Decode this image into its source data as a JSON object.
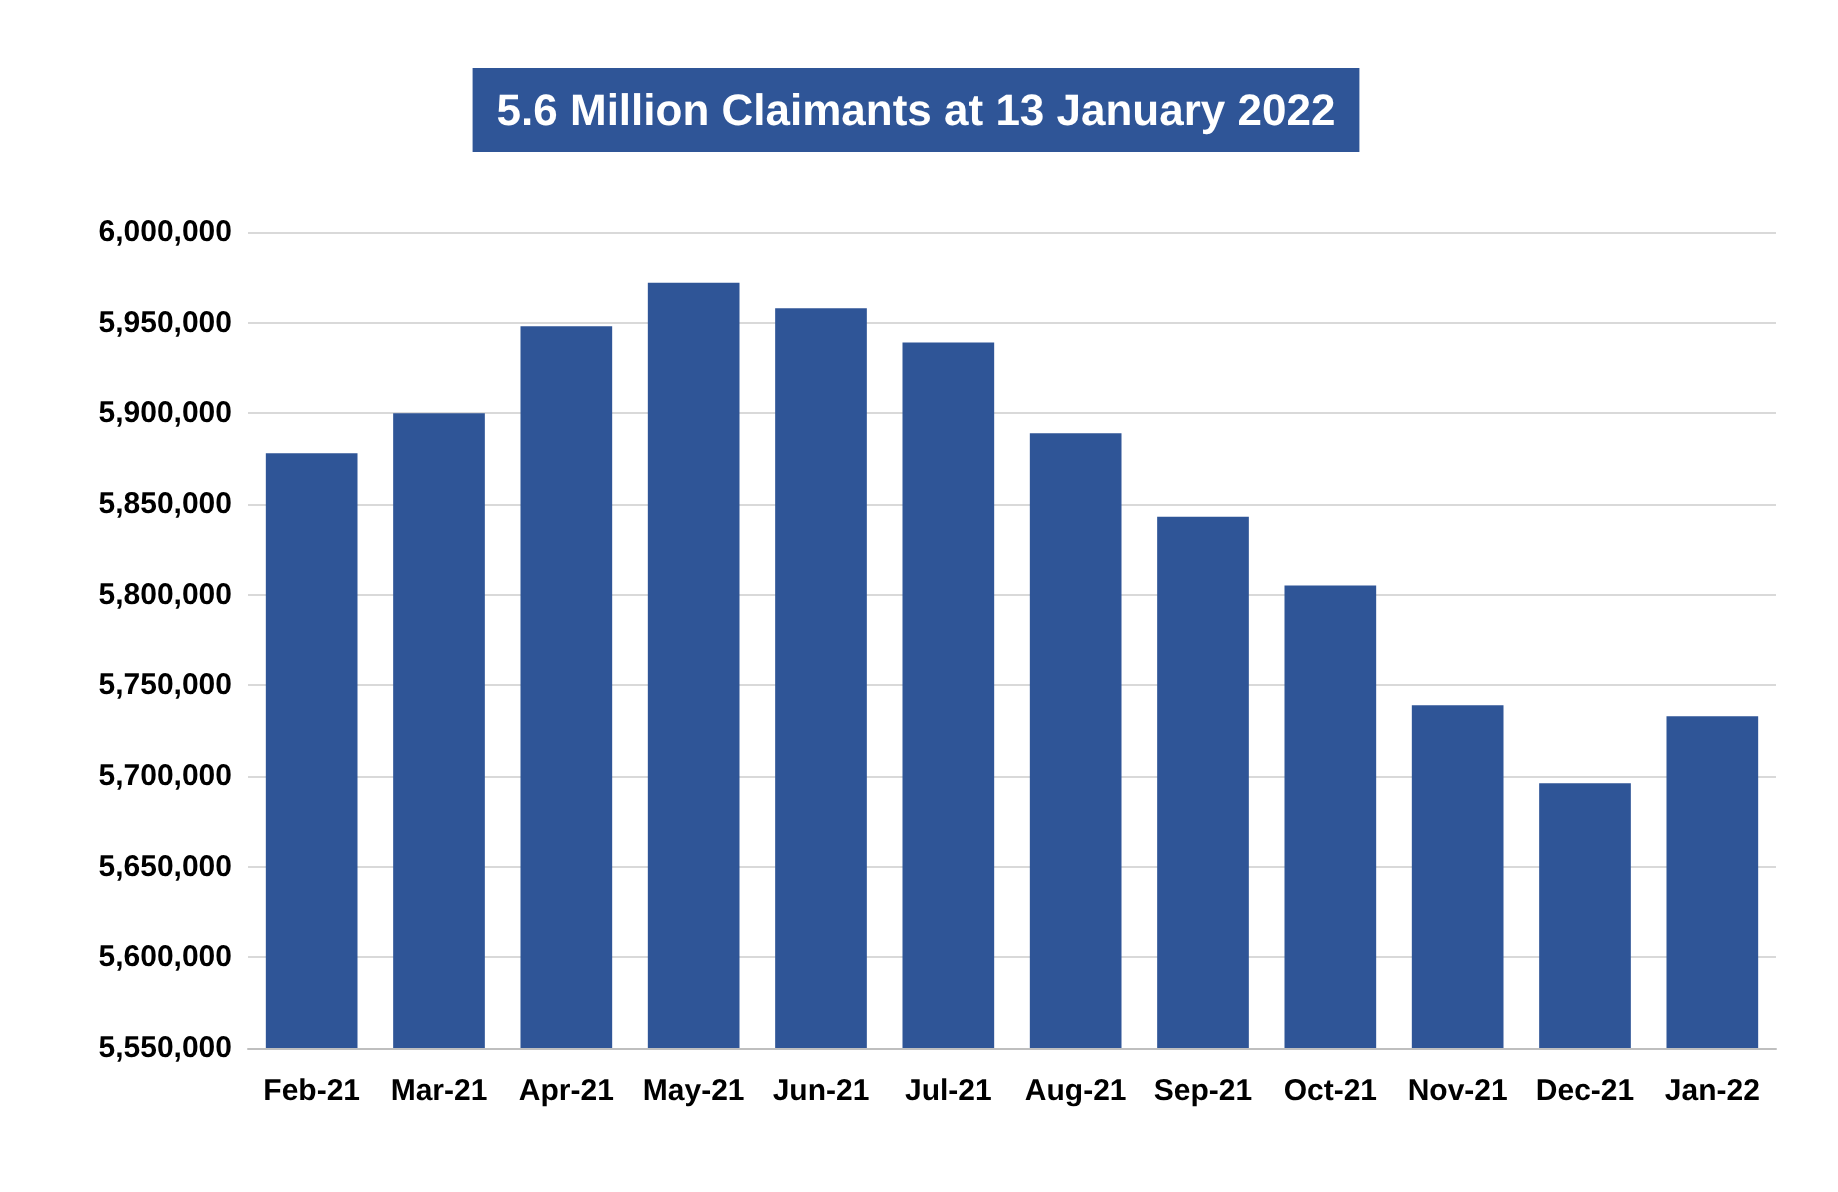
{
  "chart_data": {
    "type": "bar",
    "title": "5.6 Million Claimants at 13 January 2022",
    "categories": [
      "Feb-21",
      "Mar-21",
      "Apr-21",
      "May-21",
      "Jun-21",
      "Jul-21",
      "Aug-21",
      "Sep-21",
      "Oct-21",
      "Nov-21",
      "Dec-21",
      "Jan-22"
    ],
    "values": [
      5878000,
      5900000,
      5948000,
      5972000,
      5958000,
      5939000,
      5889000,
      5843000,
      5805000,
      5739000,
      5696000,
      5733000
    ],
    "color": "#2f5597",
    "ylim": [
      5550000,
      6000000
    ],
    "yticks": [
      {
        "value": 5550000,
        "label": "5,550,000"
      },
      {
        "value": 5600000,
        "label": "5,600,000"
      },
      {
        "value": 5650000,
        "label": "5,650,000"
      },
      {
        "value": 5700000,
        "label": "5,700,000"
      },
      {
        "value": 5750000,
        "label": "5,750,000"
      },
      {
        "value": 5800000,
        "label": "5,800,000"
      },
      {
        "value": 5850000,
        "label": "5,850,000"
      },
      {
        "value": 5900000,
        "label": "5,900,000"
      },
      {
        "value": 5950000,
        "label": "5,950,000"
      },
      {
        "value": 6000000,
        "label": "6,000,000"
      }
    ],
    "grid": "y"
  }
}
